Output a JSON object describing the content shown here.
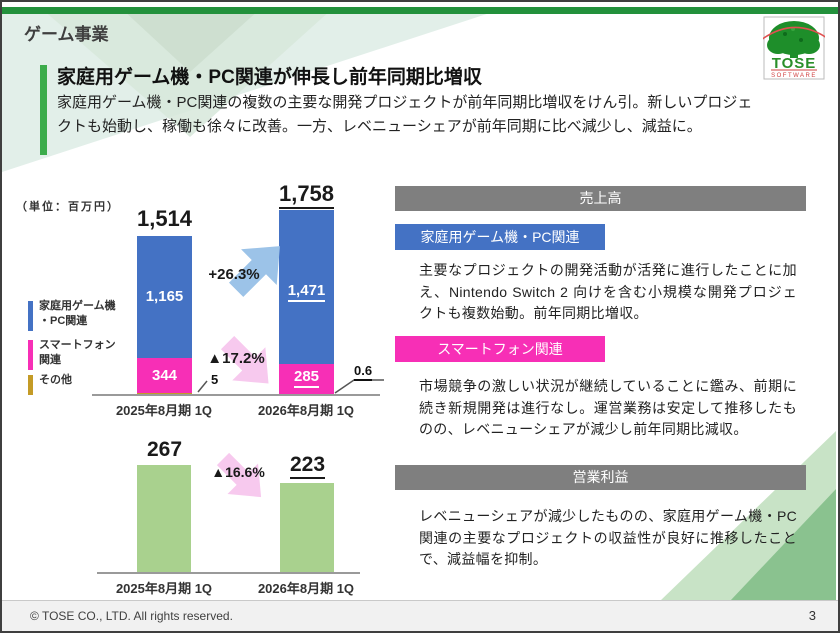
{
  "slide": {
    "header_title": "ゲーム事業",
    "logo": {
      "text": "TOSE",
      "subtext": "SOFTWARE"
    },
    "headline": "家庭用ゲーム機・PC関連が伸長し前年同期比増収",
    "lead": "家庭用ゲーム機・PC関連の複数の主要な開発プロジェクトが前年同期比増収をけん引。新しいプロジェクトも始動し、稼働も徐々に改善。一方、レベニューシェアが前年同期に比べ減少し、減益に。",
    "footer": {
      "copyright": "© TOSE CO., LTD. All rights reserved.",
      "page_number": "3"
    }
  },
  "chart_data": [
    {
      "type": "bar",
      "stacked": true,
      "title": "売上高",
      "unit_label": "（単位：百万円）",
      "categories": [
        "2025年8月期 1Q",
        "2026年8月期 1Q"
      ],
      "series": [
        {
          "name": "家庭用ゲーム機\n・PC関連",
          "color": "#4472C4",
          "values": [
            1165,
            1471
          ],
          "labels": [
            "1,165",
            "1,471"
          ]
        },
        {
          "name": "スマートフォン\n関連",
          "color": "#F72FB6",
          "values": [
            344,
            285
          ],
          "labels": [
            "344",
            "285"
          ]
        },
        {
          "name": "その他",
          "color": "#C49B26",
          "values": [
            5,
            0.6
          ],
          "labels": [
            "5",
            "0.6"
          ]
        }
      ],
      "totals": {
        "values": [
          1514,
          1758
        ],
        "labels": [
          "1,514",
          "1,758"
        ]
      },
      "change_labels": [
        "+26.3%",
        "▲17.2%"
      ],
      "ylim": [
        0,
        1900
      ],
      "grid": false
    },
    {
      "type": "bar",
      "title": "営業利益",
      "categories": [
        "2025年8月期 1Q",
        "2026年8月期 1Q"
      ],
      "values": [
        267,
        223
      ],
      "labels": [
        "267",
        "223"
      ],
      "change_label": "▲16.6%",
      "color": "#A9D18E",
      "ylim": [
        0,
        300
      ],
      "grid": false
    }
  ],
  "right_panel": {
    "sales_header": "売上高",
    "sections": [
      {
        "badge": "家庭用ゲーム機・PC関連",
        "badge_color": "#4472C4",
        "text": "主要なプロジェクトの開発活動が活発に進行したことに加え、Nintendo Switch 2 向けを含む小規模な開発プロジェクトも複数始動。前年同期比増収。"
      },
      {
        "badge": "スマートフォン関連",
        "badge_color": "#F72FB6",
        "text": "市場競争の激しい状況が継続していることに鑑み、前期に続き新規開発は進行なし。運営業務は安定して推移したものの、レベニューシェアが減少し前年同期比減収。"
      }
    ],
    "profit_header": "営業利益",
    "profit_text": "レベニューシェアが減少したものの、家庭用ゲーム機・PC関連の主要なプロジェクトの収益性が良好に推移したことで、減益幅を抑制。"
  },
  "colors": {
    "top_bar_green": "#23913C",
    "accent_green": "#3CAC4B",
    "bar_blue": "#4472C4",
    "bar_pink": "#F72FB6",
    "bar_gold": "#C49B26",
    "bar_light_green": "#A9D18E",
    "header_gray": "#7F7F7F",
    "arrow_blue": "#9CC3E8",
    "arrow_pink": "#F7C9EE"
  }
}
